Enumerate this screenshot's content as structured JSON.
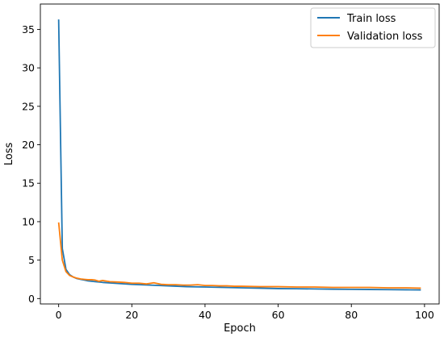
{
  "chart_data": {
    "type": "line",
    "xlabel": "Epoch",
    "ylabel": "Loss",
    "xlim": [
      -5,
      104
    ],
    "ylim": [
      -0.7,
      38.3
    ],
    "xticks": [
      0,
      20,
      40,
      60,
      80,
      100
    ],
    "yticks": [
      0,
      5,
      10,
      15,
      20,
      25,
      30,
      35
    ],
    "grid": false,
    "legend_position": "top-right",
    "series": [
      {
        "name": "Train loss",
        "color": "#1f77b4",
        "x": [
          0,
          1,
          2,
          3,
          4,
          5,
          6,
          7,
          8,
          9,
          10,
          12,
          15,
          20,
          25,
          30,
          35,
          40,
          45,
          50,
          55,
          60,
          65,
          70,
          75,
          80,
          85,
          90,
          95,
          99
        ],
        "y": [
          36.3,
          6.5,
          3.8,
          3.1,
          2.8,
          2.6,
          2.5,
          2.4,
          2.3,
          2.25,
          2.2,
          2.1,
          2.0,
          1.85,
          1.75,
          1.65,
          1.55,
          1.5,
          1.45,
          1.4,
          1.35,
          1.3,
          1.28,
          1.25,
          1.22,
          1.2,
          1.18,
          1.16,
          1.14,
          1.12
        ]
      },
      {
        "name": "Validation loss",
        "color": "#ff7f0e",
        "x": [
          0,
          1,
          2,
          3,
          4,
          5,
          6,
          7,
          8,
          9,
          10,
          11,
          12,
          14,
          16,
          18,
          20,
          22,
          24,
          26,
          28,
          30,
          32,
          34,
          36,
          38,
          40,
          42,
          44,
          46,
          48,
          50,
          55,
          60,
          65,
          70,
          75,
          80,
          85,
          90,
          95,
          99
        ],
        "y": [
          9.9,
          5.0,
          3.5,
          3.0,
          2.8,
          2.65,
          2.55,
          2.5,
          2.45,
          2.45,
          2.4,
          2.25,
          2.35,
          2.2,
          2.15,
          2.1,
          2.0,
          2.0,
          1.9,
          2.05,
          1.85,
          1.8,
          1.8,
          1.75,
          1.75,
          1.8,
          1.7,
          1.7,
          1.65,
          1.65,
          1.6,
          1.6,
          1.55,
          1.55,
          1.5,
          1.5,
          1.45,
          1.45,
          1.45,
          1.4,
          1.4,
          1.35
        ]
      }
    ]
  }
}
